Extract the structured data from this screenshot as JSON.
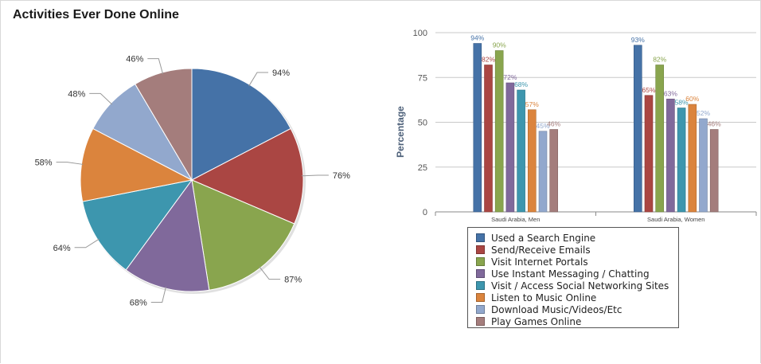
{
  "page": {
    "title": "Activities Ever Done Online"
  },
  "colors": [
    "#4572a7",
    "#aa4643",
    "#89a54e",
    "#80699b",
    "#3d96ae",
    "#db843d",
    "#92a8cd",
    "#a47d7c"
  ],
  "chart_data": [
    {
      "type": "pie",
      "title": "",
      "slices": [
        {
          "name": "Used a Search Engine",
          "value": 94,
          "label": "94%"
        },
        {
          "name": "Send/Receive Emails",
          "value": 76,
          "label": "76%"
        },
        {
          "name": "Visit Internet Portals",
          "value": 87,
          "label": "87%"
        },
        {
          "name": "Use Instant Messaging / Chatting",
          "value": 68,
          "label": "68%"
        },
        {
          "name": "Visit / Access Social Networking Sites",
          "value": 64,
          "label": "64%"
        },
        {
          "name": "Listen to Music Online",
          "value": 58,
          "label": "58%"
        },
        {
          "name": "Download Music/Videos/Etc",
          "value": 48,
          "label": "48%"
        },
        {
          "name": "Play Games Online",
          "value": 46,
          "label": "46%"
        }
      ]
    },
    {
      "type": "bar",
      "title": "",
      "xlabel": "",
      "ylabel": "Percentage",
      "ylim": [
        0,
        100
      ],
      "yticks": [
        0,
        25,
        50,
        75,
        100
      ],
      "grid": true,
      "categories": [
        "Saudi Arabia, Men",
        "Saudi Arabia, Women"
      ],
      "series": [
        {
          "name": "Used a Search Engine",
          "values": [
            94,
            93
          ],
          "labels": [
            "94%",
            "93%"
          ]
        },
        {
          "name": "Send/Receive Emails",
          "values": [
            82,
            65
          ],
          "labels": [
            "82%",
            "65%"
          ]
        },
        {
          "name": "Visit Internet Portals",
          "values": [
            90,
            82
          ],
          "labels": [
            "90%",
            "82%"
          ]
        },
        {
          "name": "Use Instant Messaging / Chatting",
          "values": [
            72,
            63
          ],
          "labels": [
            "72%",
            "63%"
          ]
        },
        {
          "name": "Visit / Access Social Networking Sites",
          "values": [
            68,
            58
          ],
          "labels": [
            "68%",
            "58%"
          ]
        },
        {
          "name": "Listen to Music Online",
          "values": [
            57,
            60
          ],
          "labels": [
            "57%",
            "60%"
          ]
        },
        {
          "name": "Download Music/Videos/Etc",
          "values": [
            45,
            52
          ],
          "labels": [
            "45%",
            "52%"
          ]
        },
        {
          "name": "Play Games Online",
          "values": [
            46,
            46
          ],
          "labels": [
            "46%",
            "46%"
          ]
        }
      ],
      "legend_position": "bottom"
    }
  ]
}
